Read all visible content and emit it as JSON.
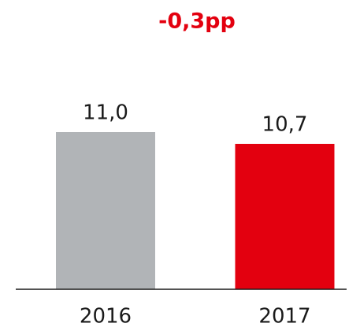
{
  "chart_data": {
    "type": "bar",
    "title": "-0,3pp",
    "title_color": "#e3000f",
    "categories": [
      "2016",
      "2017"
    ],
    "values": [
      11.0,
      10.7
    ],
    "value_labels": [
      "11,0",
      "10,7"
    ],
    "colors": [
      "#b1b4b7",
      "#e3000f"
    ],
    "ylim": [
      7,
      12
    ]
  }
}
